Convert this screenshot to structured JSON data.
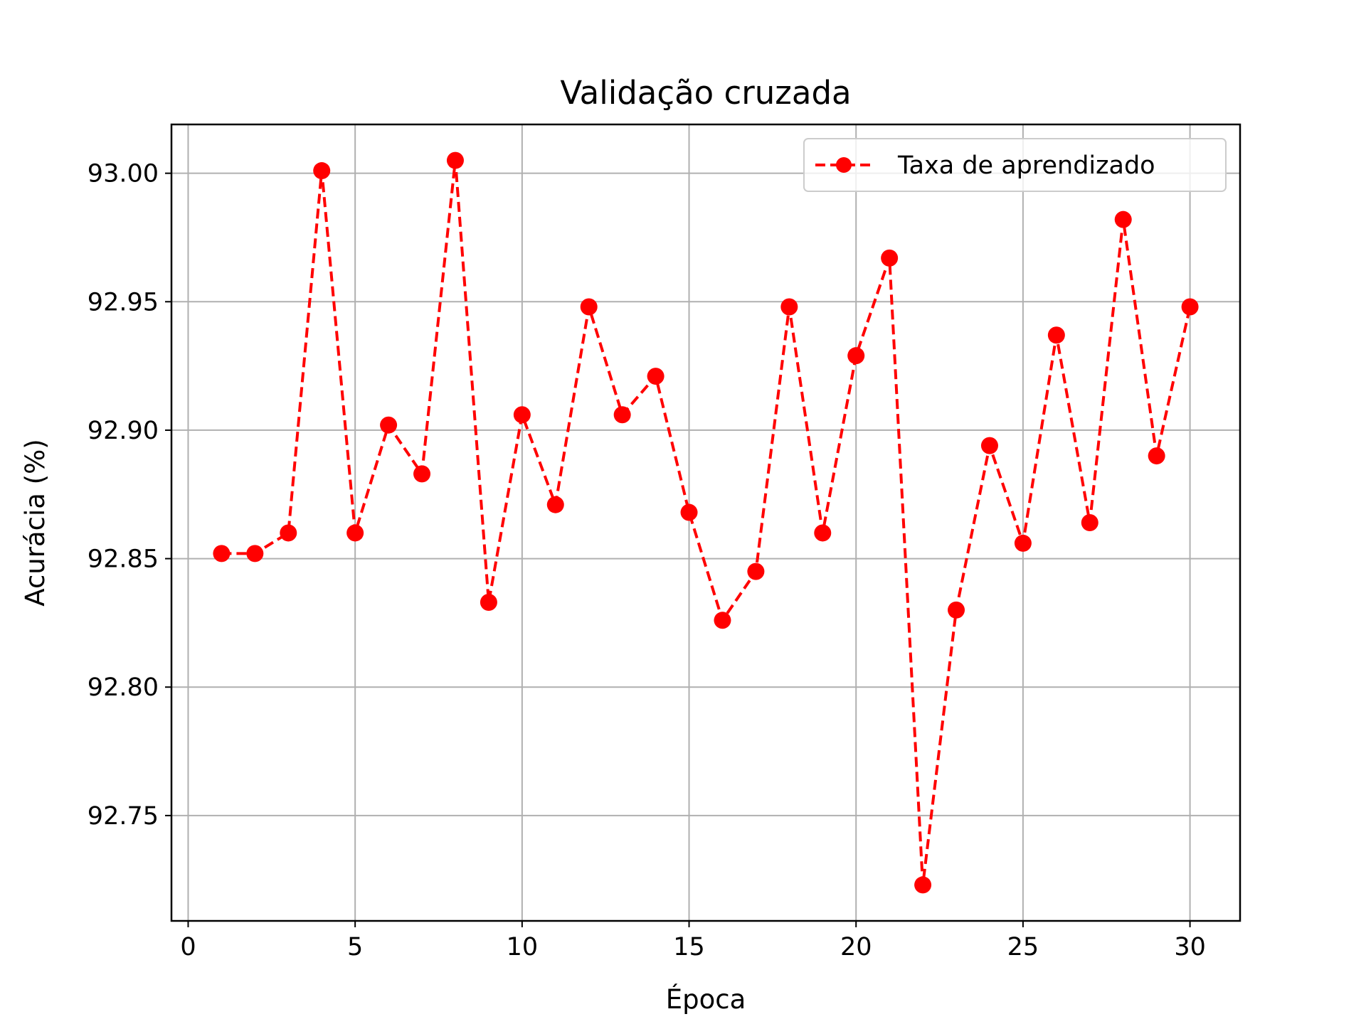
{
  "chart_data": {
    "type": "line",
    "title": "Validação cruzada",
    "xlabel": "Época",
    "ylabel": "Acurácia (%)",
    "xlim": [
      -0.5,
      31.5
    ],
    "ylim": [
      92.709,
      93.019
    ],
    "xticks": [
      0,
      5,
      10,
      15,
      20,
      25,
      30
    ],
    "xtick_labels": [
      "0",
      "5",
      "10",
      "15",
      "20",
      "25",
      "30"
    ],
    "yticks": [
      92.75,
      92.8,
      92.85,
      92.9,
      92.95,
      93.0
    ],
    "ytick_labels": [
      "92.75",
      "92.80",
      "92.85",
      "92.90",
      "92.95",
      "93.00"
    ],
    "grid": true,
    "legend_position": "top-right",
    "series": [
      {
        "name": "Taxa de aprendizado",
        "color": "#ff0000",
        "line_style": "dashed",
        "marker": "circle",
        "x": [
          1,
          2,
          3,
          4,
          5,
          6,
          7,
          8,
          9,
          10,
          11,
          12,
          13,
          14,
          15,
          16,
          17,
          18,
          19,
          20,
          21,
          22,
          23,
          24,
          25,
          26,
          27,
          28,
          29,
          30
        ],
        "values": [
          92.852,
          92.852,
          92.86,
          93.001,
          92.86,
          92.902,
          92.883,
          93.005,
          92.833,
          92.906,
          92.871,
          92.948,
          92.906,
          92.921,
          92.868,
          92.826,
          92.845,
          92.948,
          92.86,
          92.929,
          92.967,
          92.723,
          92.83,
          92.894,
          92.856,
          92.937,
          92.864,
          92.982,
          92.89,
          92.948
        ]
      }
    ]
  }
}
